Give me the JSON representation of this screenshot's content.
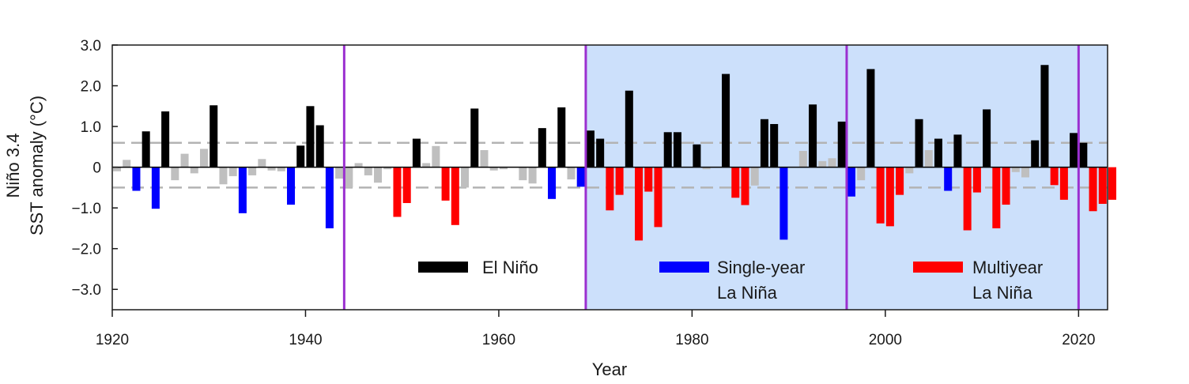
{
  "chart_data": {
    "type": "bar",
    "xlabel": "Year",
    "ylabel_line1": "Niño 3.4",
    "ylabel_line2": "SST anomaly (°C)",
    "xlim": [
      1920,
      2023
    ],
    "ylim": [
      -3.5,
      3.0
    ],
    "x_ticks": [
      1920,
      1940,
      1960,
      1980,
      2000,
      2020
    ],
    "y_ticks": [
      {
        "value": 3,
        "label": "3.0"
      },
      {
        "value": 2,
        "label": "2.0"
      },
      {
        "value": 1,
        "label": "1.0"
      },
      {
        "value": 0,
        "label": "0"
      },
      {
        "value": -1,
        "label": "−1.0"
      },
      {
        "value": -2,
        "label": "−2.0"
      },
      {
        "value": -3,
        "label": "−3.0"
      }
    ],
    "thresholds": [
      0.6,
      -0.5
    ],
    "vertical_lines": [
      1944,
      1969,
      1996,
      2020
    ],
    "shaded_range": [
      1969,
      2023
    ],
    "colors": {
      "el_nino": "#000000",
      "single_la_nina": "#0000ff",
      "multi_la_nina": "#ff0000",
      "neutral": "#bfbfbf",
      "shade": "#cce0fb",
      "vline": "#9b30d0",
      "threshold": "#b3b3b3"
    },
    "legend": [
      {
        "key": "E",
        "line1": "El Niño",
        "line2": ""
      },
      {
        "key": "S",
        "line1": "Single-year",
        "line2": "La Niña"
      },
      {
        "key": "M",
        "line1": "Multiyear",
        "line2": "La Niña"
      }
    ],
    "series": [
      {
        "year": 1920,
        "value": -0.1,
        "type": "N"
      },
      {
        "year": 1921,
        "value": 0.18,
        "type": "N"
      },
      {
        "year": 1922,
        "value": -0.58,
        "type": "S"
      },
      {
        "year": 1923,
        "value": 0.88,
        "type": "E"
      },
      {
        "year": 1924,
        "value": -1.02,
        "type": "S"
      },
      {
        "year": 1925,
        "value": 1.37,
        "type": "E"
      },
      {
        "year": 1926,
        "value": -0.32,
        "type": "N"
      },
      {
        "year": 1927,
        "value": 0.33,
        "type": "N"
      },
      {
        "year": 1928,
        "value": -0.15,
        "type": "N"
      },
      {
        "year": 1929,
        "value": 0.45,
        "type": "N"
      },
      {
        "year": 1930,
        "value": 1.52,
        "type": "E"
      },
      {
        "year": 1931,
        "value": -0.42,
        "type": "N"
      },
      {
        "year": 1932,
        "value": -0.22,
        "type": "N"
      },
      {
        "year": 1933,
        "value": -1.13,
        "type": "S"
      },
      {
        "year": 1934,
        "value": -0.2,
        "type": "N"
      },
      {
        "year": 1935,
        "value": 0.2,
        "type": "N"
      },
      {
        "year": 1936,
        "value": -0.08,
        "type": "N"
      },
      {
        "year": 1937,
        "value": -0.1,
        "type": "N"
      },
      {
        "year": 1938,
        "value": -0.92,
        "type": "S"
      },
      {
        "year": 1939,
        "value": 0.53,
        "type": "E"
      },
      {
        "year": 1940,
        "value": 1.5,
        "type": "E"
      },
      {
        "year": 1941,
        "value": 1.03,
        "type": "E"
      },
      {
        "year": 1942,
        "value": -1.5,
        "type": "S"
      },
      {
        "year": 1943,
        "value": -0.28,
        "type": "N"
      },
      {
        "year": 1944,
        "value": -0.5,
        "type": "N"
      },
      {
        "year": 1945,
        "value": 0.1,
        "type": "N"
      },
      {
        "year": 1946,
        "value": -0.2,
        "type": "N"
      },
      {
        "year": 1947,
        "value": -0.38,
        "type": "N"
      },
      {
        "year": 1948,
        "value": -0.05,
        "type": "N"
      },
      {
        "year": 1949,
        "value": -1.22,
        "type": "M"
      },
      {
        "year": 1950,
        "value": -0.88,
        "type": "M"
      },
      {
        "year": 1951,
        "value": 0.7,
        "type": "E"
      },
      {
        "year": 1952,
        "value": 0.1,
        "type": "N"
      },
      {
        "year": 1953,
        "value": 0.52,
        "type": "N"
      },
      {
        "year": 1954,
        "value": -0.82,
        "type": "M"
      },
      {
        "year": 1955,
        "value": -1.42,
        "type": "M"
      },
      {
        "year": 1956,
        "value": -0.5,
        "type": "N"
      },
      {
        "year": 1957,
        "value": 1.44,
        "type": "E"
      },
      {
        "year": 1958,
        "value": 0.42,
        "type": "N"
      },
      {
        "year": 1959,
        "value": -0.08,
        "type": "N"
      },
      {
        "year": 1960,
        "value": -0.05,
        "type": "N"
      },
      {
        "year": 1961,
        "value": 0.0,
        "type": "N"
      },
      {
        "year": 1962,
        "value": -0.32,
        "type": "N"
      },
      {
        "year": 1963,
        "value": -0.4,
        "type": "N"
      },
      {
        "year": 1964,
        "value": 0.96,
        "type": "E"
      },
      {
        "year": 1965,
        "value": -0.78,
        "type": "S"
      },
      {
        "year": 1966,
        "value": 1.47,
        "type": "E"
      },
      {
        "year": 1967,
        "value": -0.3,
        "type": "N"
      },
      {
        "year": 1968,
        "value": -0.48,
        "type": "S"
      },
      {
        "year": 1969,
        "value": 0.9,
        "type": "E"
      },
      {
        "year": 1970,
        "value": 0.7,
        "type": "E"
      },
      {
        "year": 1971,
        "value": -1.06,
        "type": "M"
      },
      {
        "year": 1972,
        "value": -0.68,
        "type": "M"
      },
      {
        "year": 1973,
        "value": 1.88,
        "type": "E"
      },
      {
        "year": 1974,
        "value": -1.8,
        "type": "M"
      },
      {
        "year": 1975,
        "value": -0.6,
        "type": "M"
      },
      {
        "year": 1976,
        "value": -1.47,
        "type": "M"
      },
      {
        "year": 1977,
        "value": 0.86,
        "type": "E"
      },
      {
        "year": 1978,
        "value": 0.86,
        "type": "E"
      },
      {
        "year": 1979,
        "value": 0.0,
        "type": "N"
      },
      {
        "year": 1980,
        "value": 0.56,
        "type": "E"
      },
      {
        "year": 1981,
        "value": -0.05,
        "type": "N"
      },
      {
        "year": 1982,
        "value": 0.0,
        "type": "N"
      },
      {
        "year": 1983,
        "value": 2.29,
        "type": "E"
      },
      {
        "year": 1984,
        "value": -0.75,
        "type": "M"
      },
      {
        "year": 1985,
        "value": -0.93,
        "type": "M"
      },
      {
        "year": 1986,
        "value": -0.45,
        "type": "N"
      },
      {
        "year": 1987,
        "value": 1.18,
        "type": "E"
      },
      {
        "year": 1988,
        "value": 1.06,
        "type": "E"
      },
      {
        "year": 1989,
        "value": -1.78,
        "type": "S"
      },
      {
        "year": 1990,
        "value": 0.0,
        "type": "N"
      },
      {
        "year": 1991,
        "value": 0.4,
        "type": "N"
      },
      {
        "year": 1992,
        "value": 1.54,
        "type": "E"
      },
      {
        "year": 1993,
        "value": 0.15,
        "type": "N"
      },
      {
        "year": 1994,
        "value": 0.22,
        "type": "N"
      },
      {
        "year": 1995,
        "value": 1.12,
        "type": "E"
      },
      {
        "year": 1996,
        "value": -0.72,
        "type": "S"
      },
      {
        "year": 1997,
        "value": -0.32,
        "type": "N"
      },
      {
        "year": 1998,
        "value": 2.41,
        "type": "E"
      },
      {
        "year": 1999,
        "value": -1.38,
        "type": "M"
      },
      {
        "year": 2000,
        "value": -1.45,
        "type": "M"
      },
      {
        "year": 2001,
        "value": -0.68,
        "type": "M"
      },
      {
        "year": 2002,
        "value": -0.15,
        "type": "N"
      },
      {
        "year": 2003,
        "value": 1.18,
        "type": "E"
      },
      {
        "year": 2004,
        "value": 0.42,
        "type": "N"
      },
      {
        "year": 2005,
        "value": 0.7,
        "type": "E"
      },
      {
        "year": 2006,
        "value": -0.58,
        "type": "S"
      },
      {
        "year": 2007,
        "value": 0.8,
        "type": "E"
      },
      {
        "year": 2008,
        "value": -1.55,
        "type": "M"
      },
      {
        "year": 2009,
        "value": -0.62,
        "type": "M"
      },
      {
        "year": 2010,
        "value": 1.42,
        "type": "E"
      },
      {
        "year": 2011,
        "value": -1.5,
        "type": "M"
      },
      {
        "year": 2012,
        "value": -0.92,
        "type": "M"
      },
      {
        "year": 2013,
        "value": -0.12,
        "type": "N"
      },
      {
        "year": 2014,
        "value": -0.25,
        "type": "N"
      },
      {
        "year": 2015,
        "value": 0.66,
        "type": "E"
      },
      {
        "year": 2016,
        "value": 2.51,
        "type": "E"
      },
      {
        "year": 2017,
        "value": -0.44,
        "type": "M"
      },
      {
        "year": 2018,
        "value": -0.8,
        "type": "M"
      },
      {
        "year": 2019,
        "value": 0.84,
        "type": "E"
      },
      {
        "year": 2020,
        "value": 0.6,
        "type": "E"
      },
      {
        "year": 2021,
        "value": -1.08,
        "type": "M"
      },
      {
        "year": 2022,
        "value": -0.9,
        "type": "M"
      },
      {
        "year": 2023,
        "value": -0.8,
        "type": "M"
      }
    ]
  }
}
